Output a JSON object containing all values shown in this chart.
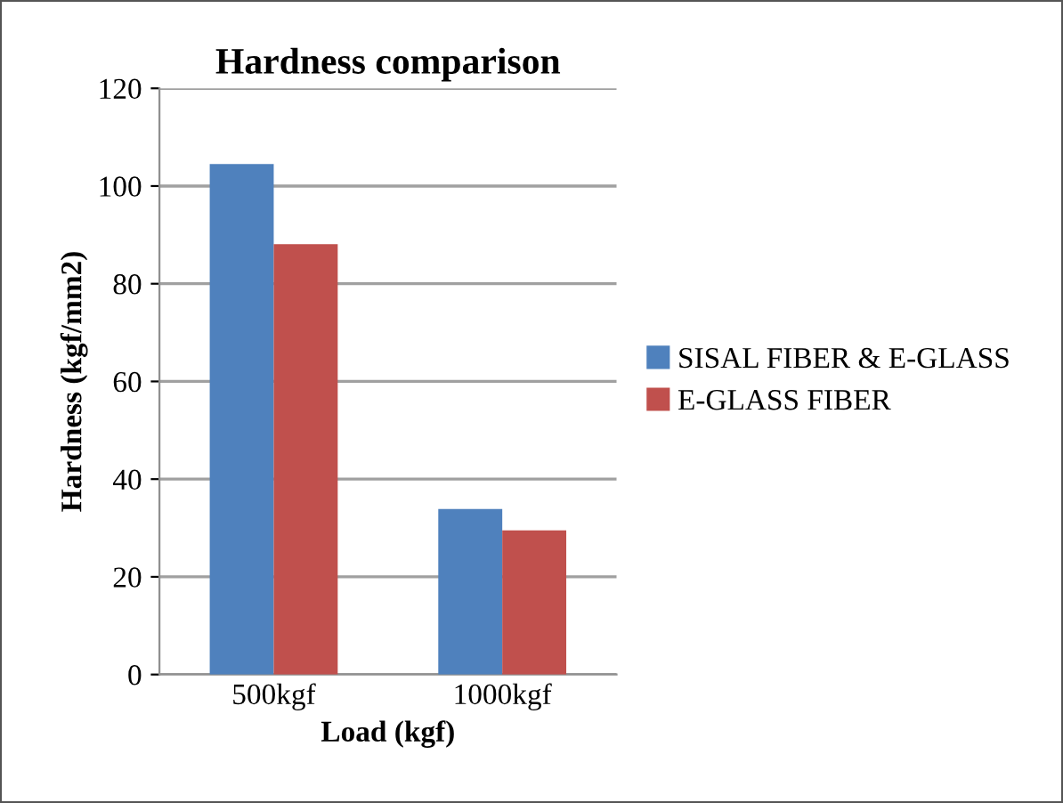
{
  "chart_data": {
    "type": "bar",
    "title": "Hardness comparison",
    "xlabel": "Load (kgf)",
    "ylabel": "Hardness (kgf/mm2)",
    "categories": [
      "500kgf",
      "1000kgf"
    ],
    "series": [
      {
        "name": "SISAL FIBER & E-GLASS",
        "color": "#4f81bd",
        "values": [
          104.5,
          33.9
        ]
      },
      {
        "name": "E-GLASS FIBER",
        "color": "#c0504d",
        "values": [
          88.1,
          29.5
        ]
      }
    ],
    "ylim": [
      0,
      120
    ],
    "yticks": [
      0,
      20,
      40,
      60,
      80,
      100,
      120
    ],
    "grid": "y",
    "legend": "right"
  }
}
